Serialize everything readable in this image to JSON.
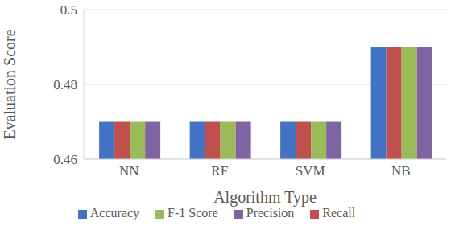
{
  "chart_data": {
    "type": "bar",
    "x_label": "Algorithm Type",
    "y_label": "Evaluation Score",
    "categories": [
      "NN",
      "RF",
      "SVM",
      "NB"
    ],
    "series": [
      {
        "name": "Accuracy",
        "color": "#4472c4",
        "values": [
          0.47,
          0.47,
          0.47,
          0.49
        ]
      },
      {
        "name": "Recall",
        "color": "#c0504d",
        "values": [
          0.47,
          0.47,
          0.47,
          0.49
        ]
      },
      {
        "name": "F-1 Score",
        "color": "#9bbb59",
        "values": [
          0.47,
          0.47,
          0.47,
          0.49
        ]
      },
      {
        "name": "Precision",
        "color": "#8064a2",
        "values": [
          0.47,
          0.47,
          0.47,
          0.49
        ]
      }
    ],
    "ylim": [
      0.46,
      0.5
    ],
    "yticks": [
      0.46,
      0.48,
      0.5
    ],
    "grid": true,
    "legend": "bottom"
  }
}
